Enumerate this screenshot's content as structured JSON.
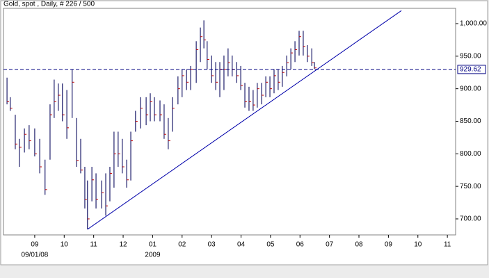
{
  "chart_data": {
    "type": "ohlc",
    "title": "Gold, spot , Daily, # 226 / 500",
    "color": "#1c1c6a",
    "close_color": "#c00000",
    "x": [
      8.06,
      8.17,
      8.34,
      8.48,
      8.65,
      8.81,
      9.0,
      9.17,
      9.35,
      9.52,
      9.66,
      9.8,
      9.94,
      10.09,
      10.27,
      10.42,
      10.56,
      10.7,
      10.79,
      10.94,
      11.08,
      11.27,
      11.41,
      11.55,
      11.69,
      11.83,
      11.97,
      12.12,
      12.26,
      12.42,
      12.59,
      12.78,
      12.92,
      13.06,
      13.25,
      13.39,
      13.53,
      13.67,
      13.86,
      14.0,
      14.15,
      14.29,
      14.48,
      14.62,
      14.74,
      14.85,
      15.0,
      15.14,
      15.28,
      15.42,
      15.56,
      15.7,
      15.85,
      15.99,
      16.13,
      16.27,
      16.41,
      16.55,
      16.7,
      16.84,
      16.98,
      17.12,
      17.26,
      17.4,
      17.55,
      17.69,
      17.83,
      17.97,
      18.11,
      18.25,
      18.4,
      18.49
    ],
    "high": [
      917,
      887,
      860,
      823,
      839,
      844,
      839,
      823,
      791,
      876,
      914,
      908,
      908,
      898,
      930,
      855,
      823,
      780,
      759,
      780,
      770,
      759,
      770,
      780,
      834,
      834,
      823,
      791,
      834,
      866,
      887,
      887,
      893,
      887,
      882,
      876,
      855,
      887,
      919,
      930,
      930,
      935,
      973,
      994,
      1005,
      973,
      951,
      941,
      941,
      951,
      962,
      951,
      941,
      935,
      909,
      903,
      898,
      909,
      909,
      919,
      919,
      930,
      930,
      935,
      951,
      962,
      973,
      989,
      989,
      967,
      962,
      941
    ],
    "low": [
      876,
      866,
      807,
      780,
      802,
      807,
      796,
      770,
      737,
      791,
      855,
      866,
      850,
      823,
      855,
      780,
      770,
      716,
      684,
      727,
      716,
      716,
      705,
      727,
      748,
      780,
      770,
      748,
      759,
      834,
      839,
      844,
      850,
      850,
      850,
      823,
      807,
      834,
      876,
      887,
      898,
      898,
      909,
      941,
      962,
      930,
      909,
      898,
      887,
      898,
      919,
      919,
      909,
      898,
      871,
      866,
      866,
      871,
      876,
      887,
      887,
      893,
      898,
      903,
      919,
      930,
      941,
      951,
      951,
      941,
      935,
      930
    ],
    "close": [
      880,
      870,
      815,
      810,
      830,
      820,
      800,
      780,
      745,
      860,
      880,
      890,
      860,
      840,
      910,
      790,
      775,
      730,
      700,
      760,
      730,
      740,
      720,
      770,
      800,
      800,
      780,
      760,
      820,
      850,
      870,
      860,
      880,
      860,
      860,
      830,
      820,
      870,
      900,
      920,
      910,
      930,
      960,
      980,
      975,
      945,
      920,
      910,
      930,
      930,
      940,
      930,
      920,
      905,
      880,
      880,
      875,
      900,
      890,
      910,
      900,
      920,
      910,
      925,
      940,
      955,
      960,
      980,
      965,
      950,
      940,
      932
    ],
    "xlim": [
      7.94,
      23.28
    ],
    "xticks": [
      {
        "value": 9,
        "label": "09"
      },
      {
        "value": 10,
        "label": "10"
      },
      {
        "value": 11,
        "label": "11"
      },
      {
        "value": 12,
        "label": "12"
      },
      {
        "value": 13,
        "label": "01"
      },
      {
        "value": 14,
        "label": "02"
      },
      {
        "value": 15,
        "label": "03"
      },
      {
        "value": 16,
        "label": "04"
      },
      {
        "value": 17,
        "label": "05"
      },
      {
        "value": 18,
        "label": "06"
      },
      {
        "value": 19,
        "label": "07"
      },
      {
        "value": 20,
        "label": "08"
      },
      {
        "value": 21,
        "label": "09"
      },
      {
        "value": 22,
        "label": "10"
      },
      {
        "value": 23,
        "label": "11"
      }
    ],
    "x_sublabels": [
      {
        "value": 9,
        "label": "09/01/08"
      },
      {
        "value": 13,
        "label": "2009"
      }
    ],
    "ylim": [
      675.4,
      1023.5
    ],
    "yticks": [
      {
        "value": 700,
        "label": "700.00"
      },
      {
        "value": 750,
        "label": "750.00"
      },
      {
        "value": 800,
        "label": "800.00"
      },
      {
        "value": 850,
        "label": "850.00"
      },
      {
        "value": 900,
        "label": "900.00"
      },
      {
        "value": 950,
        "label": "950.00"
      },
      {
        "value": 1000,
        "label": "1,000.00"
      }
    ],
    "hline": {
      "value": 929.62,
      "color": "#000080"
    },
    "trendline": {
      "x": [
        10.79,
        21.44
      ],
      "y": [
        684,
        1020
      ],
      "color": "#0000aa"
    }
  }
}
